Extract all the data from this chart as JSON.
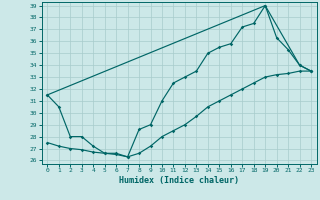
{
  "xlabel": "Humidex (Indice chaleur)",
  "bg_color": "#cce8e8",
  "grid_color": "#a8cccc",
  "line_color": "#006666",
  "xlim": [
    -0.5,
    23.5
  ],
  "ylim": [
    25.7,
    39.3
  ],
  "xticks": [
    0,
    1,
    2,
    3,
    4,
    5,
    6,
    7,
    8,
    9,
    10,
    11,
    12,
    13,
    14,
    15,
    16,
    17,
    18,
    19,
    20,
    21,
    22,
    23
  ],
  "yticks": [
    26,
    27,
    28,
    29,
    30,
    31,
    32,
    33,
    34,
    35,
    36,
    37,
    38,
    39
  ],
  "line1_x": [
    0,
    1,
    2,
    3,
    4,
    5,
    6,
    7,
    8,
    9,
    10,
    11,
    12,
    13,
    14,
    15,
    16,
    17,
    18,
    19,
    20,
    21,
    22,
    23
  ],
  "line1_y": [
    31.5,
    30.5,
    28.0,
    28.0,
    27.2,
    26.6,
    26.6,
    26.3,
    28.6,
    29.0,
    31.0,
    32.5,
    33.0,
    33.5,
    35.0,
    35.5,
    35.8,
    37.2,
    37.5,
    39.0,
    36.3,
    35.3,
    34.0,
    33.5
  ],
  "line2_x": [
    0,
    19,
    22,
    23
  ],
  "line2_y": [
    31.5,
    39.0,
    34.0,
    33.5
  ],
  "line3_x": [
    0,
    1,
    2,
    3,
    4,
    5,
    6,
    7,
    8,
    9,
    10,
    11,
    12,
    13,
    14,
    15,
    16,
    17,
    18,
    19,
    20,
    21,
    22,
    23
  ],
  "line3_y": [
    27.5,
    27.2,
    27.0,
    26.9,
    26.7,
    26.6,
    26.5,
    26.3,
    26.6,
    27.2,
    28.0,
    28.5,
    29.0,
    29.7,
    30.5,
    31.0,
    31.5,
    32.0,
    32.5,
    33.0,
    33.2,
    33.3,
    33.5,
    33.5
  ]
}
